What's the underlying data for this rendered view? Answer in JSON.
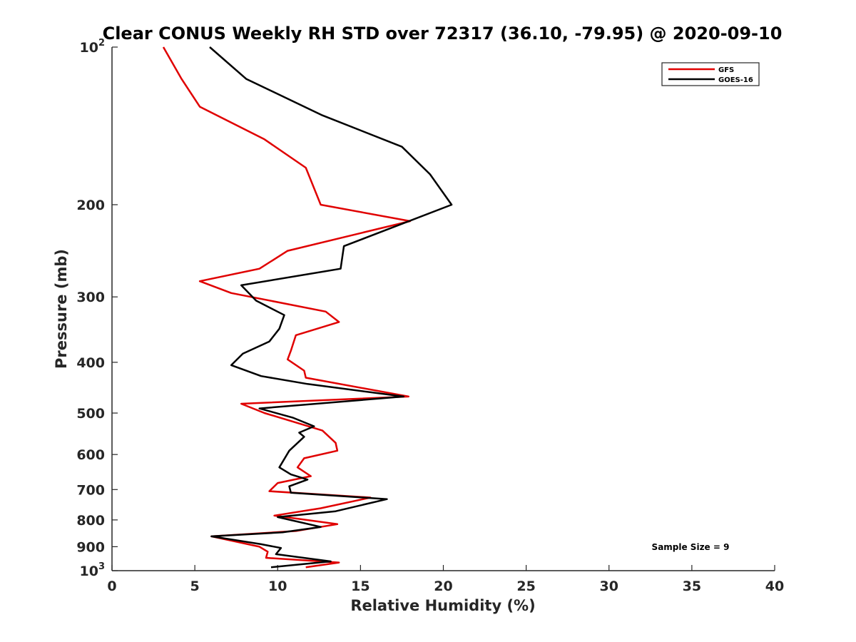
{
  "chart_data": {
    "type": "line",
    "title": "Clear CONUS Weekly RH STD over 72317 (36.10, -79.95) @ 2020-09-10",
    "xlabel": "Relative Humidity (%)",
    "ylabel": "Pressure (mb)",
    "xlim": [
      0,
      40
    ],
    "ylim": [
      100,
      1000
    ],
    "y_scale": "log",
    "y_reversed": true,
    "x_ticks": [
      0,
      5,
      10,
      15,
      20,
      25,
      30,
      35,
      40
    ],
    "y_ticks": [
      {
        "value": 100,
        "label": "10",
        "sup": "2"
      },
      {
        "value": 200,
        "label": "200",
        "sup": ""
      },
      {
        "value": 300,
        "label": "300",
        "sup": ""
      },
      {
        "value": 400,
        "label": "400",
        "sup": ""
      },
      {
        "value": 500,
        "label": "500",
        "sup": ""
      },
      {
        "value": 600,
        "label": "600",
        "sup": ""
      },
      {
        "value": 700,
        "label": "700",
        "sup": ""
      },
      {
        "value": 800,
        "label": "800",
        "sup": ""
      },
      {
        "value": 900,
        "label": "900",
        "sup": ""
      },
      {
        "value": 1000,
        "label": "10",
        "sup": "3"
      }
    ],
    "grid": false,
    "legend_position": "top-right",
    "annotation": "Sample Size = 9",
    "series": [
      {
        "name": "GFS",
        "color": "#e00000",
        "points": [
          [
            3.1,
            100
          ],
          [
            4.2,
            115
          ],
          [
            5.3,
            130
          ],
          [
            9.2,
            150
          ],
          [
            11.7,
            170
          ],
          [
            12.6,
            200
          ],
          [
            18.0,
            215
          ],
          [
            10.6,
            245
          ],
          [
            8.9,
            265
          ],
          [
            5.3,
            280
          ],
          [
            7.2,
            295
          ],
          [
            12.9,
            320
          ],
          [
            13.7,
            335
          ],
          [
            11.1,
            355
          ],
          [
            10.8,
            380
          ],
          [
            10.6,
            395
          ],
          [
            11.6,
            415
          ],
          [
            11.7,
            428
          ],
          [
            17.9,
            465
          ],
          [
            7.8,
            480
          ],
          [
            9.2,
            500
          ],
          [
            12.7,
            540
          ],
          [
            13.5,
            570
          ],
          [
            13.6,
            590
          ],
          [
            11.6,
            610
          ],
          [
            11.2,
            635
          ],
          [
            12.0,
            660
          ],
          [
            10.0,
            680
          ],
          [
            9.5,
            705
          ],
          [
            15.6,
            725
          ],
          [
            12.6,
            760
          ],
          [
            9.8,
            785
          ],
          [
            13.6,
            815
          ],
          [
            11.1,
            840
          ],
          [
            6.0,
            860
          ],
          [
            8.9,
            900
          ],
          [
            9.4,
            920
          ],
          [
            9.3,
            945
          ],
          [
            13.7,
            965
          ],
          [
            11.7,
            985
          ]
        ]
      },
      {
        "name": "GOES-16",
        "color": "#000000",
        "points": [
          [
            5.9,
            100
          ],
          [
            8.1,
            115
          ],
          [
            12.7,
            135
          ],
          [
            17.5,
            155
          ],
          [
            19.2,
            175
          ],
          [
            20.5,
            200
          ],
          [
            14.0,
            240
          ],
          [
            13.8,
            265
          ],
          [
            7.8,
            285
          ],
          [
            8.7,
            305
          ],
          [
            10.4,
            325
          ],
          [
            10.1,
            345
          ],
          [
            9.5,
            365
          ],
          [
            7.9,
            385
          ],
          [
            7.2,
            405
          ],
          [
            9.0,
            425
          ],
          [
            11.8,
            440
          ],
          [
            17.6,
            465
          ],
          [
            8.9,
            490
          ],
          [
            10.9,
            510
          ],
          [
            12.2,
            530
          ],
          [
            11.3,
            545
          ],
          [
            11.6,
            555
          ],
          [
            10.7,
            590
          ],
          [
            10.1,
            635
          ],
          [
            10.8,
            655
          ],
          [
            11.8,
            670
          ],
          [
            10.7,
            690
          ],
          [
            10.8,
            710
          ],
          [
            16.6,
            730
          ],
          [
            13.5,
            770
          ],
          [
            10.0,
            790
          ],
          [
            12.6,
            825
          ],
          [
            10.3,
            845
          ],
          [
            6.0,
            860
          ],
          [
            9.0,
            890
          ],
          [
            10.2,
            905
          ],
          [
            9.9,
            930
          ],
          [
            13.2,
            960
          ],
          [
            9.6,
            985
          ]
        ]
      }
    ]
  }
}
